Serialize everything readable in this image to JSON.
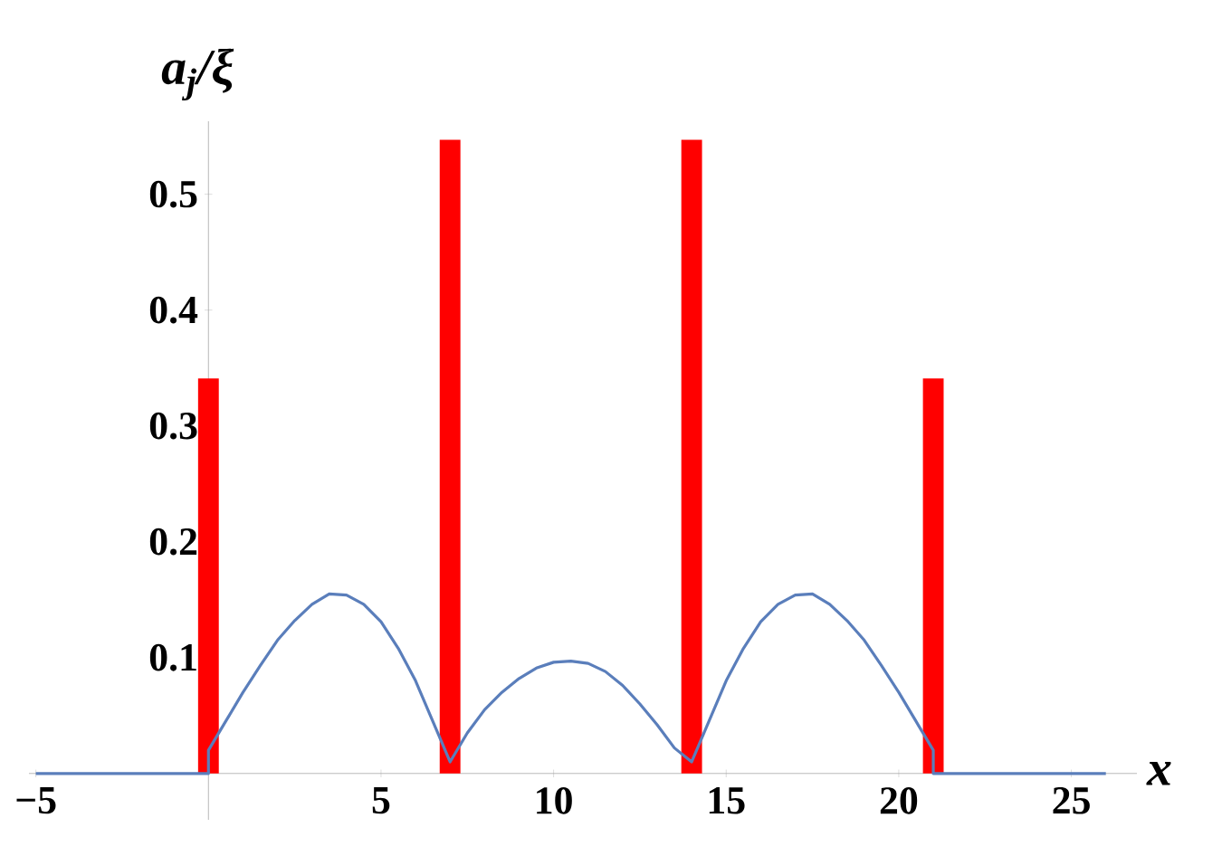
{
  "chart_data": {
    "type": "bar",
    "ylabel": "a$_{j}$/ξ",
    "xlabel": "x",
    "xlim": [
      -5.2,
      26.9
    ],
    "ylim": [
      -0.04,
      0.563
    ],
    "xticks": [
      {
        "value": -5,
        "label": "−5"
      },
      5,
      10,
      15,
      20,
      25
    ],
    "yticks": [
      0.1,
      0.2,
      0.3,
      0.4,
      0.5
    ],
    "grid": false,
    "series": [
      {
        "color": "#ff0000",
        "x": [
          0,
          7,
          14,
          21
        ],
        "values": [
          0.341,
          0.547,
          0.547,
          0.341
        ]
      },
      {
        "type": "line",
        "color": "#5a7ebb",
        "x": [
          -5,
          0,
          0,
          0.5,
          1,
          1.5,
          2,
          2.5,
          3,
          3.5,
          4,
          4.5,
          5,
          5.5,
          6,
          6.5,
          7,
          7.5,
          8,
          8.5,
          9,
          9.5,
          10,
          10.5,
          11,
          11.5,
          12,
          12.5,
          13,
          13.5,
          14,
          14.5,
          15,
          15.5,
          16,
          16.5,
          17,
          17.5,
          18,
          18.5,
          19,
          19.5,
          20,
          20.5,
          21,
          21,
          26
        ],
        "values": [
          0,
          0,
          0.02,
          0.045,
          0.07,
          0.093,
          0.115,
          0.132,
          0.146,
          0.155,
          0.154,
          0.146,
          0.131,
          0.108,
          0.08,
          0.045,
          0.01,
          0.035,
          0.055,
          0.07,
          0.082,
          0.091,
          0.096,
          0.097,
          0.095,
          0.088,
          0.076,
          0.06,
          0.042,
          0.022,
          0.01,
          0.045,
          0.08,
          0.108,
          0.131,
          0.146,
          0.154,
          0.155,
          0.146,
          0.132,
          0.115,
          0.093,
          0.07,
          0.045,
          0.02,
          0,
          0
        ]
      }
    ]
  }
}
